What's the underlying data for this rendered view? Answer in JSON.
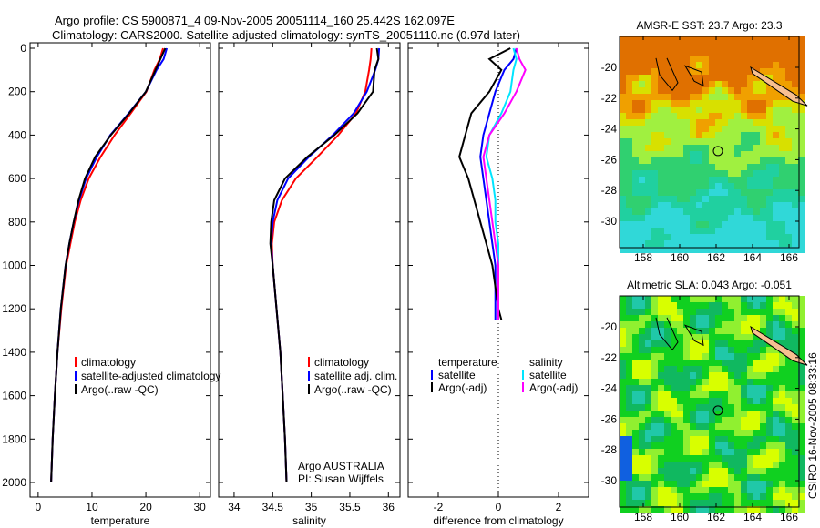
{
  "title_line1": "Argo profile: CS 5900871_4 09-Nov-2005 20051114_160 25.442S 162.097E",
  "title_line2": "Climatology: CARS2000. Satellite-adjusted climatology: synTS_20051110.nc (0.97d later)",
  "side_label": "CSIRO 16-Nov-2005 08:33:16",
  "colors": {
    "climatology": "#ff0000",
    "satellite": "#0000ff",
    "argo": "#000000",
    "sal_satellite": "#00e5ff",
    "sal_argo": "#ff00ff"
  },
  "chart_data": [
    {
      "type": "line",
      "name": "temperature-profile",
      "xlabel": "temperature",
      "ylabel": "",
      "xlim": [
        -1.5,
        32
      ],
      "ylim": [
        2000,
        0
      ],
      "xticks": [
        "0",
        "10",
        "20",
        "30"
      ],
      "yticks": [
        "0",
        "200",
        "400",
        "600",
        "800",
        "1000",
        "1200",
        "1400",
        "1600",
        "1800",
        "2000"
      ],
      "legend": [
        "climatology",
        "satellite-adjusted climatology",
        "Argo(..raw -QC)"
      ],
      "depth": [
        0,
        50,
        100,
        200,
        300,
        400,
        500,
        600,
        700,
        800,
        900,
        1000,
        1200,
        1400,
        1600,
        1800,
        2000
      ],
      "series": [
        {
          "name": "climatology",
          "color": "#ff0000",
          "values": [
            23.2,
            22.6,
            21.6,
            20.1,
            17.2,
            14.2,
            11.6,
            9.4,
            7.9,
            6.8,
            6.0,
            5.2,
            4.3,
            3.6,
            3.1,
            2.7,
            2.4
          ]
        },
        {
          "name": "satellite-adjusted climatology",
          "color": "#0000ff",
          "values": [
            23.9,
            23.3,
            22.0,
            20.0,
            16.8,
            13.4,
            10.9,
            8.9,
            7.6,
            6.6,
            5.8,
            5.1,
            4.2,
            3.6,
            3.1,
            2.7,
            2.4
          ]
        },
        {
          "name": "Argo(..raw -QC)",
          "color": "#000000",
          "values": [
            23.6,
            22.7,
            21.8,
            20.0,
            16.9,
            13.5,
            10.6,
            8.7,
            7.5,
            6.6,
            5.8,
            5.1,
            4.2,
            3.6,
            3.1,
            2.7,
            2.4
          ]
        }
      ]
    },
    {
      "type": "line",
      "name": "salinity-profile",
      "xlabel": "salinity",
      "ylabel": "",
      "xlim": [
        33.8,
        36.15
      ],
      "ylim": [
        2000,
        0
      ],
      "xticks": [
        "34",
        "34.5",
        "35",
        "35.5",
        "36"
      ],
      "legend": [
        "climatology",
        "satellite adj. clim.",
        "Argo(..raw -QC)"
      ],
      "annotation": [
        "Argo AUSTRALIA",
        "PI: Susan Wijffels"
      ],
      "depth": [
        0,
        50,
        100,
        200,
        300,
        400,
        500,
        600,
        700,
        800,
        900,
        1000,
        1200,
        1400,
        1600,
        1800,
        2000
      ],
      "series": [
        {
          "name": "climatology",
          "color": "#ff0000",
          "values": [
            35.78,
            35.77,
            35.75,
            35.7,
            35.58,
            35.35,
            35.08,
            34.8,
            34.62,
            34.52,
            34.49,
            34.5,
            34.55,
            34.6,
            34.63,
            34.66,
            34.68
          ]
        },
        {
          "name": "satellite adj. clim.",
          "color": "#0000ff",
          "values": [
            35.88,
            35.87,
            35.83,
            35.72,
            35.55,
            35.28,
            34.97,
            34.7,
            34.56,
            34.5,
            34.48,
            34.5,
            34.55,
            34.6,
            34.63,
            34.66,
            34.68
          ]
        },
        {
          "name": "Argo(..raw -QC)",
          "color": "#000000",
          "values": [
            35.85,
            35.87,
            35.82,
            35.8,
            35.6,
            35.3,
            34.95,
            34.66,
            34.52,
            34.48,
            34.47,
            34.5,
            34.55,
            34.6,
            34.63,
            34.66,
            34.68
          ]
        }
      ]
    },
    {
      "type": "line",
      "name": "difference-profile",
      "xlabel": "difference from climatology",
      "ylabel": "",
      "xlim": [
        -3,
        3
      ],
      "ylim": [
        2000,
        0
      ],
      "xticks": [
        "-2",
        "0",
        "2"
      ],
      "legend_temperature": {
        "title": "temperature",
        "items": [
          "satellite",
          "Argo(-adj)"
        ]
      },
      "legend_salinity": {
        "title": "salinity",
        "items": [
          "satellite",
          "Argo(-adj)"
        ]
      },
      "depth": [
        0,
        50,
        100,
        200,
        300,
        400,
        500,
        600,
        700,
        800,
        900,
        1000,
        1100,
        1200,
        1250
      ],
      "series": [
        {
          "name": "temperature satellite",
          "color": "#0000ff",
          "values": [
            0.6,
            0.5,
            0.2,
            -0.1,
            -0.3,
            -0.5,
            -0.6,
            -0.5,
            -0.4,
            -0.3,
            -0.2,
            -0.1,
            -0.1,
            -0.1,
            -0.1
          ]
        },
        {
          "name": "temperature Argo(-adj)",
          "color": "#000000",
          "values": [
            0.4,
            -0.3,
            0.1,
            -0.3,
            -0.9,
            -1.1,
            -1.3,
            -1.0,
            -0.8,
            -0.6,
            -0.4,
            -0.2,
            -0.1,
            0.0,
            0.1
          ]
        },
        {
          "name": "salinity satellite",
          "color": "#00e5ff",
          "values": [
            0.5,
            0.6,
            0.5,
            0.4,
            0.1,
            -0.3,
            -0.4,
            -0.2,
            -0.1,
            -0.1,
            0.0,
            0.0,
            0.0,
            0.0,
            0.0
          ]
        },
        {
          "name": "salinity Argo(-adj)",
          "color": "#ff00ff",
          "values": [
            0.6,
            0.7,
            0.9,
            0.6,
            0.2,
            -0.3,
            -0.5,
            -0.4,
            -0.3,
            -0.2,
            -0.1,
            0.0,
            0.0,
            0.0,
            0.0
          ]
        }
      ]
    },
    {
      "type": "heatmap",
      "name": "sst-map",
      "title": "AMSR-E SST: 23.7 Argo: 23.3",
      "xlim": [
        156.6,
        167.8
      ],
      "ylim": [
        -31.6,
        -19.4
      ],
      "xticks": [
        "158",
        "160",
        "162",
        "164",
        "166"
      ],
      "yticks": [
        "-20",
        "-22",
        "-24",
        "-26",
        "-28",
        "-30"
      ],
      "marker": {
        "lon": 162.1,
        "lat": -25.44
      }
    },
    {
      "type": "heatmap",
      "name": "sla-map",
      "title": "Altimetric SLA: 0.043 Argo: -0.051",
      "xlim": [
        156.6,
        167.8
      ],
      "ylim": [
        -31.6,
        -19.4
      ],
      "xticks": [
        "158",
        "160",
        "162",
        "164",
        "166"
      ],
      "yticks": [
        "-20",
        "-22",
        "-24",
        "-26",
        "-28",
        "-30"
      ],
      "marker": {
        "lon": 162.1,
        "lat": -25.44
      }
    }
  ]
}
